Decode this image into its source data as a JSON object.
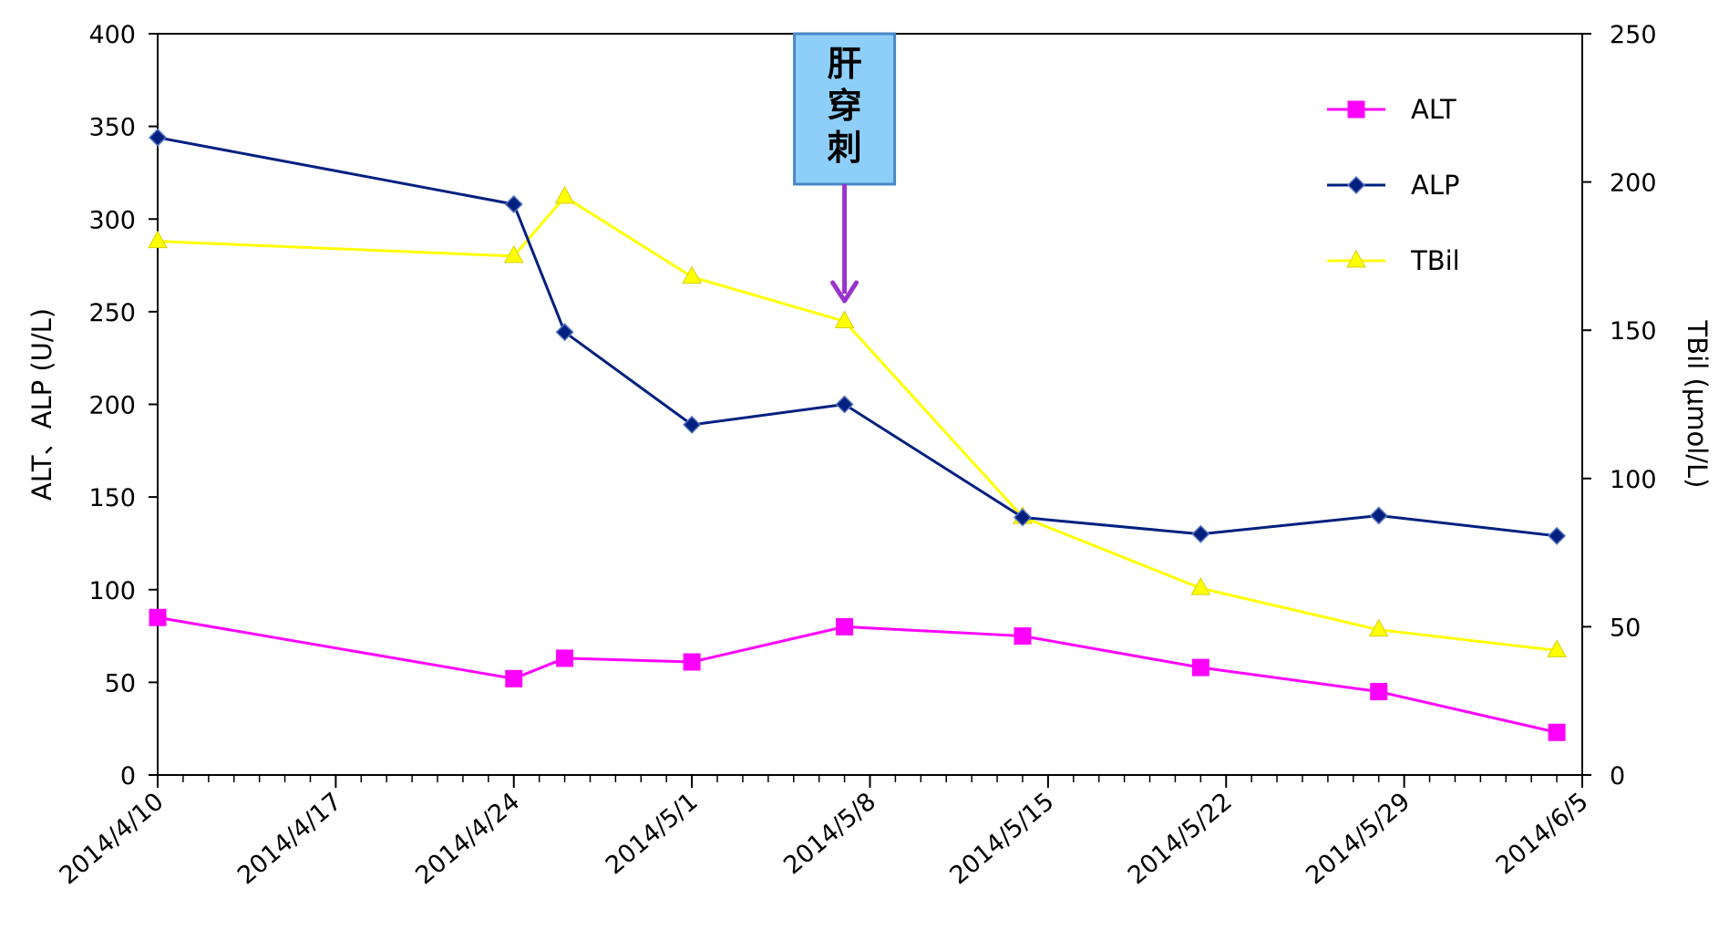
{
  "chart_data": {
    "type": "line",
    "x_type": "date",
    "xlim": [
      "2014/4/10",
      "2014/6/5"
    ],
    "x_ticks": [
      "2014/4/10",
      "2014/4/17",
      "2014/4/24",
      "2014/5/1",
      "2014/5/8",
      "2014/5/15",
      "2014/5/22",
      "2014/5/29",
      "2014/6/5"
    ],
    "ylabel_left": "ALT、ALP (U/L)",
    "ylabel_right": "TBil (μmol/L)",
    "ylim_left": [
      0,
      400
    ],
    "yticks_left": [
      "0",
      "50",
      "100",
      "150",
      "200",
      "250",
      "300",
      "350",
      "400"
    ],
    "ylim_right": [
      0,
      250
    ],
    "yticks_right": [
      "0",
      "50",
      "100",
      "150",
      "200",
      "250"
    ],
    "grid": false,
    "legend_position": "top-right",
    "series": [
      {
        "name": "ALT",
        "axis": "left",
        "color": "#FF00FF",
        "marker": "square",
        "points": [
          {
            "x": "2014/4/10",
            "y": 85
          },
          {
            "x": "2014/4/24",
            "y": 52
          },
          {
            "x": "2014/4/26",
            "y": 63
          },
          {
            "x": "2014/5/1",
            "y": 61
          },
          {
            "x": "2014/5/7",
            "y": 80
          },
          {
            "x": "2014/5/14",
            "y": 75
          },
          {
            "x": "2014/5/21",
            "y": 58
          },
          {
            "x": "2014/5/28",
            "y": 45
          },
          {
            "x": "2014/6/4",
            "y": 23
          }
        ]
      },
      {
        "name": "ALP",
        "axis": "left",
        "color": "#002080",
        "marker": "diamond",
        "points": [
          {
            "x": "2014/4/10",
            "y": 344
          },
          {
            "x": "2014/4/24",
            "y": 308
          },
          {
            "x": "2014/4/26",
            "y": 239
          },
          {
            "x": "2014/5/1",
            "y": 189
          },
          {
            "x": "2014/5/7",
            "y": 200
          },
          {
            "x": "2014/5/14",
            "y": 139
          },
          {
            "x": "2014/5/21",
            "y": 130
          },
          {
            "x": "2014/5/28",
            "y": 140
          },
          {
            "x": "2014/6/4",
            "y": 129
          }
        ]
      },
      {
        "name": "TBil",
        "axis": "right",
        "color": "#FFFF00",
        "marker": "triangle",
        "points": [
          {
            "x": "2014/4/10",
            "y": 180
          },
          {
            "x": "2014/4/24",
            "y": 175
          },
          {
            "x": "2014/4/26",
            "y": 195
          },
          {
            "x": "2014/5/1",
            "y": 168
          },
          {
            "x": "2014/5/7",
            "y": 153
          },
          {
            "x": "2014/5/14",
            "y": 87
          },
          {
            "x": "2014/5/21",
            "y": 63
          },
          {
            "x": "2014/5/28",
            "y": 49
          },
          {
            "x": "2014/6/4",
            "y": 42
          }
        ]
      }
    ],
    "annotations": [
      {
        "text": "肝穿刺",
        "x": "2014/5/7",
        "box_color": "#8ECFFA",
        "box_border_color": "#4A86C8",
        "arrow_color": "#9933CC"
      }
    ]
  }
}
